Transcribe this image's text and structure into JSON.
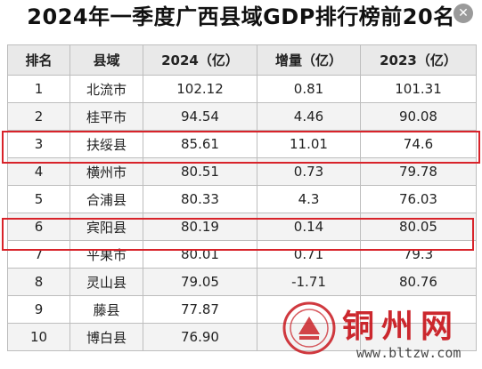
{
  "title": "2024年一季度广西县域GDP排行榜前20名",
  "columns": [
    "排名",
    "县域",
    "2024（亿）",
    "增量（亿）",
    "2023（亿）"
  ],
  "rows": [
    {
      "rank": "1",
      "county": "北流市",
      "v2024": "102.12",
      "delta": "0.81",
      "v2023": "101.31"
    },
    {
      "rank": "2",
      "county": "桂平市",
      "v2024": "94.54",
      "delta": "4.46",
      "v2023": "90.08"
    },
    {
      "rank": "3",
      "county": "扶绥县",
      "v2024": "85.61",
      "delta": "11.01",
      "v2023": "74.6"
    },
    {
      "rank": "4",
      "county": "横州市",
      "v2024": "80.51",
      "delta": "0.73",
      "v2023": "79.78"
    },
    {
      "rank": "5",
      "county": "合浦县",
      "v2024": "80.33",
      "delta": "4.3",
      "v2023": "76.03"
    },
    {
      "rank": "6",
      "county": "宾阳县",
      "v2024": "80.19",
      "delta": "0.14",
      "v2023": "80.05"
    },
    {
      "rank": "7",
      "county": "平果市",
      "v2024": "80.01",
      "delta": "0.71",
      "v2023": "79.3"
    },
    {
      "rank": "8",
      "county": "灵山县",
      "v2024": "79.05",
      "delta": "-1.71",
      "v2023": "80.76"
    },
    {
      "rank": "9",
      "county": "藤县",
      "v2024": "77.87",
      "delta": "",
      "v2023": ""
    },
    {
      "rank": "10",
      "county": "博白县",
      "v2024": "76.90",
      "delta": "",
      "v2023": ""
    }
  ],
  "watermark": {
    "name": "铜州网",
    "url": "www.bltzw.com"
  },
  "colors": {
    "highlight": "#d8232a",
    "header_bg": "#e9e9e9",
    "watermark": "#c8161d"
  },
  "icons": {
    "corner": "close-icon"
  }
}
